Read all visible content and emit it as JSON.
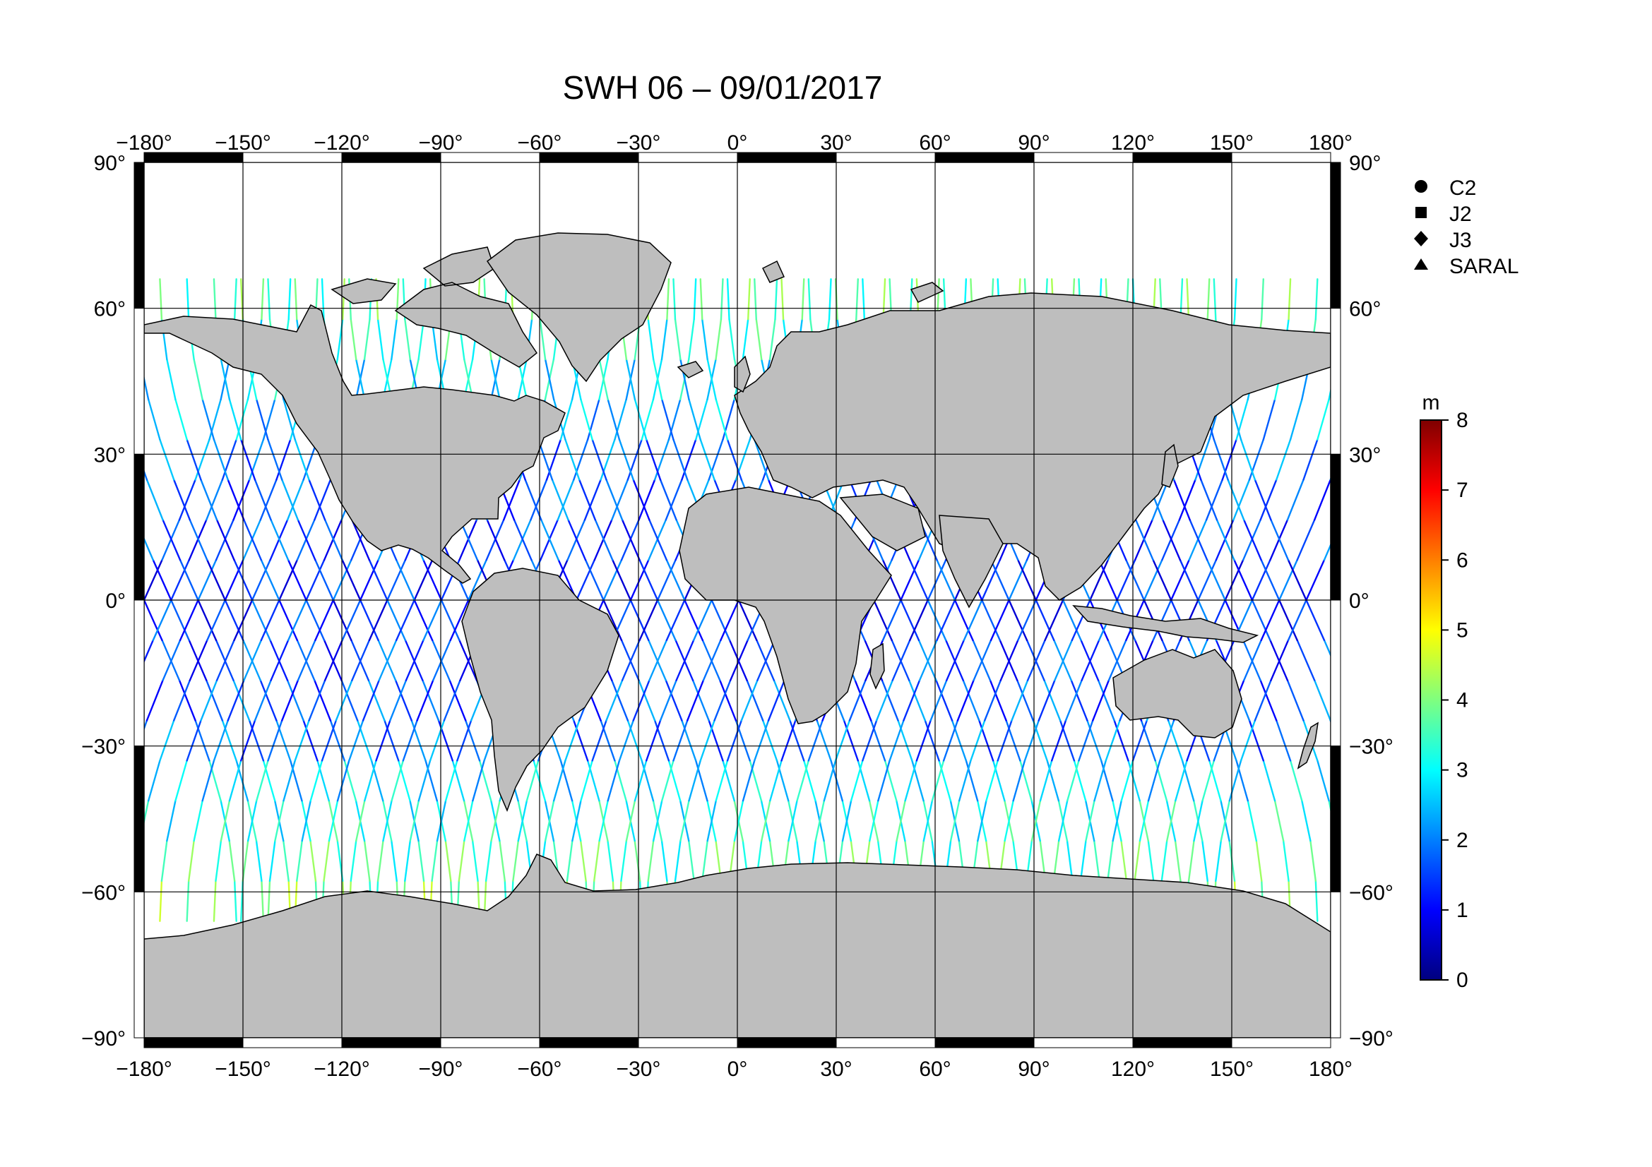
{
  "title": "SWH 06 – 09/01/2017",
  "map": {
    "lon_ticks": [
      "−180°",
      "−150°",
      "−120°",
      "−90°",
      "−60°",
      "−30°",
      "0°",
      "30°",
      "60°",
      "90°",
      "120°",
      "150°",
      "180°"
    ],
    "lat_ticks": [
      "90°",
      "60°",
      "30°",
      "0°",
      "−30°",
      "−60°",
      "−90°"
    ],
    "land_color": "#bebebe",
    "ocean_color": "#ffffff"
  },
  "legend": {
    "items": [
      {
        "label": "C2",
        "symbol": "circle"
      },
      {
        "label": "J2",
        "symbol": "square"
      },
      {
        "label": "J3",
        "symbol": "diamond"
      },
      {
        "label": "SARAL",
        "symbol": "triangle"
      }
    ]
  },
  "colorbar": {
    "unit": "m",
    "min": 0,
    "max": 8,
    "ticks": [
      "8",
      "7",
      "6",
      "5",
      "4",
      "3",
      "2",
      "1",
      "0"
    ],
    "stops": [
      "#00007f",
      "#0000ff",
      "#007fff",
      "#00ffff",
      "#7fff7f",
      "#ffff00",
      "#ff7f00",
      "#ff0000",
      "#7f0000"
    ]
  },
  "chart_data": {
    "type": "scatter",
    "title": "SWH 06 – 09/01/2017",
    "xlim": [
      -180,
      180
    ],
    "ylim": [
      -90,
      90
    ],
    "xlabel": "",
    "ylabel": "",
    "color_scale": {
      "unit": "m",
      "range": [
        0,
        8
      ]
    },
    "legend_placement": "right",
    "grid": true,
    "series": [
      {
        "name": "C2",
        "marker": "circle"
      },
      {
        "name": "J2",
        "marker": "square"
      },
      {
        "name": "J3",
        "marker": "diamond"
      },
      {
        "name": "SARAL",
        "marker": "triangle"
      }
    ]
  }
}
